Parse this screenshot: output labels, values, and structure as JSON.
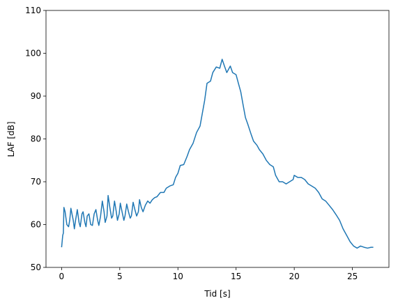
{
  "chart_data": {
    "type": "line",
    "x_label": "Tid [s]",
    "y_label": "LAF [dB]",
    "xlim": [
      -1.34,
      28.14
    ],
    "ylim": [
      50,
      110
    ],
    "xticks": [
      0,
      5,
      10,
      15,
      20,
      25
    ],
    "yticks": [
      50,
      60,
      70,
      80,
      90,
      100,
      110
    ],
    "series": [
      {
        "color": "#1f77b4",
        "x": [
          0,
          0.1,
          0.15,
          0.2,
          0.3,
          0.45,
          0.6,
          0.7,
          0.8,
          1.0,
          1.1,
          1.2,
          1.35,
          1.5,
          1.6,
          1.75,
          1.85,
          2.0,
          2.1,
          2.2,
          2.35,
          2.5,
          2.65,
          2.8,
          2.95,
          3.1,
          3.2,
          3.35,
          3.5,
          3.65,
          3.75,
          3.9,
          4.0,
          4.15,
          4.3,
          4.4,
          4.55,
          4.7,
          4.8,
          4.95,
          5.05,
          5.2,
          5.35,
          5.45,
          5.6,
          5.75,
          5.9,
          6.0,
          6.15,
          6.3,
          6.45,
          6.6,
          6.7,
          6.85,
          7.0,
          7.2,
          7.4,
          7.6,
          7.8,
          8.0,
          8.2,
          8.5,
          8.8,
          9.0,
          9.3,
          9.6,
          9.8,
          10.0,
          10.2,
          10.5,
          10.8,
          11.0,
          11.3,
          11.6,
          11.9,
          12.1,
          12.3,
          12.5,
          12.8,
          13.0,
          13.3,
          13.6,
          13.8,
          14.0,
          14.2,
          14.5,
          14.7,
          15.0,
          15.2,
          15.4,
          15.6,
          15.8,
          16.0,
          16.3,
          16.5,
          16.8,
          17.0,
          17.3,
          17.6,
          17.9,
          18.2,
          18.4,
          18.7,
          19.0,
          19.3,
          19.6,
          19.9,
          20.0,
          20.3,
          20.6,
          20.9,
          21.2,
          21.5,
          21.8,
          22.1,
          22.4,
          22.7,
          23.0,
          23.3,
          23.6,
          23.9,
          24.2,
          24.5,
          24.8,
          25.1,
          25.4,
          25.7,
          26.0,
          26.3,
          26.6,
          26.8
        ],
        "values": [
          54.7,
          57.5,
          58,
          64,
          63,
          60,
          59.5,
          61,
          63.8,
          61,
          59,
          61,
          63.5,
          60.5,
          59.5,
          62.5,
          63,
          60.5,
          59.5,
          62,
          62.5,
          60,
          59.8,
          62.5,
          63.5,
          61,
          59.8,
          62,
          65.5,
          63,
          60.5,
          62,
          66.8,
          64,
          61.5,
          62,
          65.5,
          63,
          61,
          62.5,
          65,
          63,
          61,
          62,
          64.8,
          63,
          61.5,
          62,
          65.2,
          63.5,
          62,
          63,
          65.8,
          64,
          63,
          64.5,
          65.5,
          65,
          65.8,
          66.3,
          66.5,
          67.5,
          67.5,
          68.5,
          69,
          69.3,
          71,
          72,
          73.8,
          74,
          76,
          77.5,
          79,
          81.5,
          83,
          86,
          89,
          93,
          93.5,
          95.5,
          96.8,
          96.5,
          98.6,
          97,
          95.5,
          97,
          95.5,
          95,
          93,
          91,
          88,
          85,
          83.5,
          81,
          79.5,
          78.5,
          77.5,
          76.5,
          75,
          74,
          73.5,
          71.5,
          70,
          70,
          69.5,
          70,
          70.5,
          71.5,
          71,
          71,
          70.5,
          69.5,
          69,
          68.5,
          67.5,
          66,
          65.5,
          64.5,
          63.5,
          62.3,
          61,
          59,
          57.5,
          56,
          55,
          54.5,
          55,
          54.7,
          54.5,
          54.7,
          54.7
        ]
      }
    ]
  }
}
